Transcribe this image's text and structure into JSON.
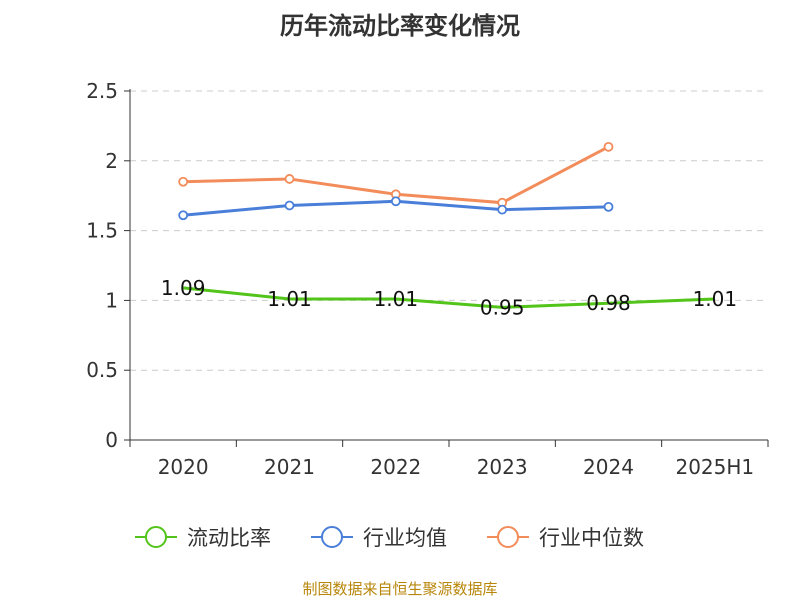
{
  "title": "历年流动比率变化情况",
  "source": "制图数据来自恒生聚源数据库",
  "chart_data": {
    "type": "line",
    "categories": [
      "2020",
      "2021",
      "2022",
      "2023",
      "2024",
      "2025H1"
    ],
    "ylim": [
      0,
      2.5
    ],
    "yticks": [
      "0",
      "0.5",
      "1",
      "1.5",
      "2",
      "2.5"
    ],
    "grid": true,
    "legend_position": "bottom",
    "series": [
      {
        "name": "流动比率",
        "color": "#52c41a",
        "values": [
          1.09,
          1.01,
          1.01,
          0.95,
          0.98,
          1.01
        ],
        "labels": [
          "1.09",
          "1.01",
          "1.01",
          "0.95",
          "0.98",
          "1.01"
        ],
        "show_labels": true,
        "markers": false
      },
      {
        "name": "行业均值",
        "color": "#4a7fd9",
        "values": [
          1.61,
          1.68,
          1.71,
          1.65,
          1.67,
          null
        ],
        "show_labels": false,
        "markers": true
      },
      {
        "name": "行业中位数",
        "color": "#f28c5a",
        "values": [
          1.85,
          1.87,
          1.76,
          1.7,
          2.1,
          null
        ],
        "show_labels": false,
        "markers": true
      }
    ]
  }
}
